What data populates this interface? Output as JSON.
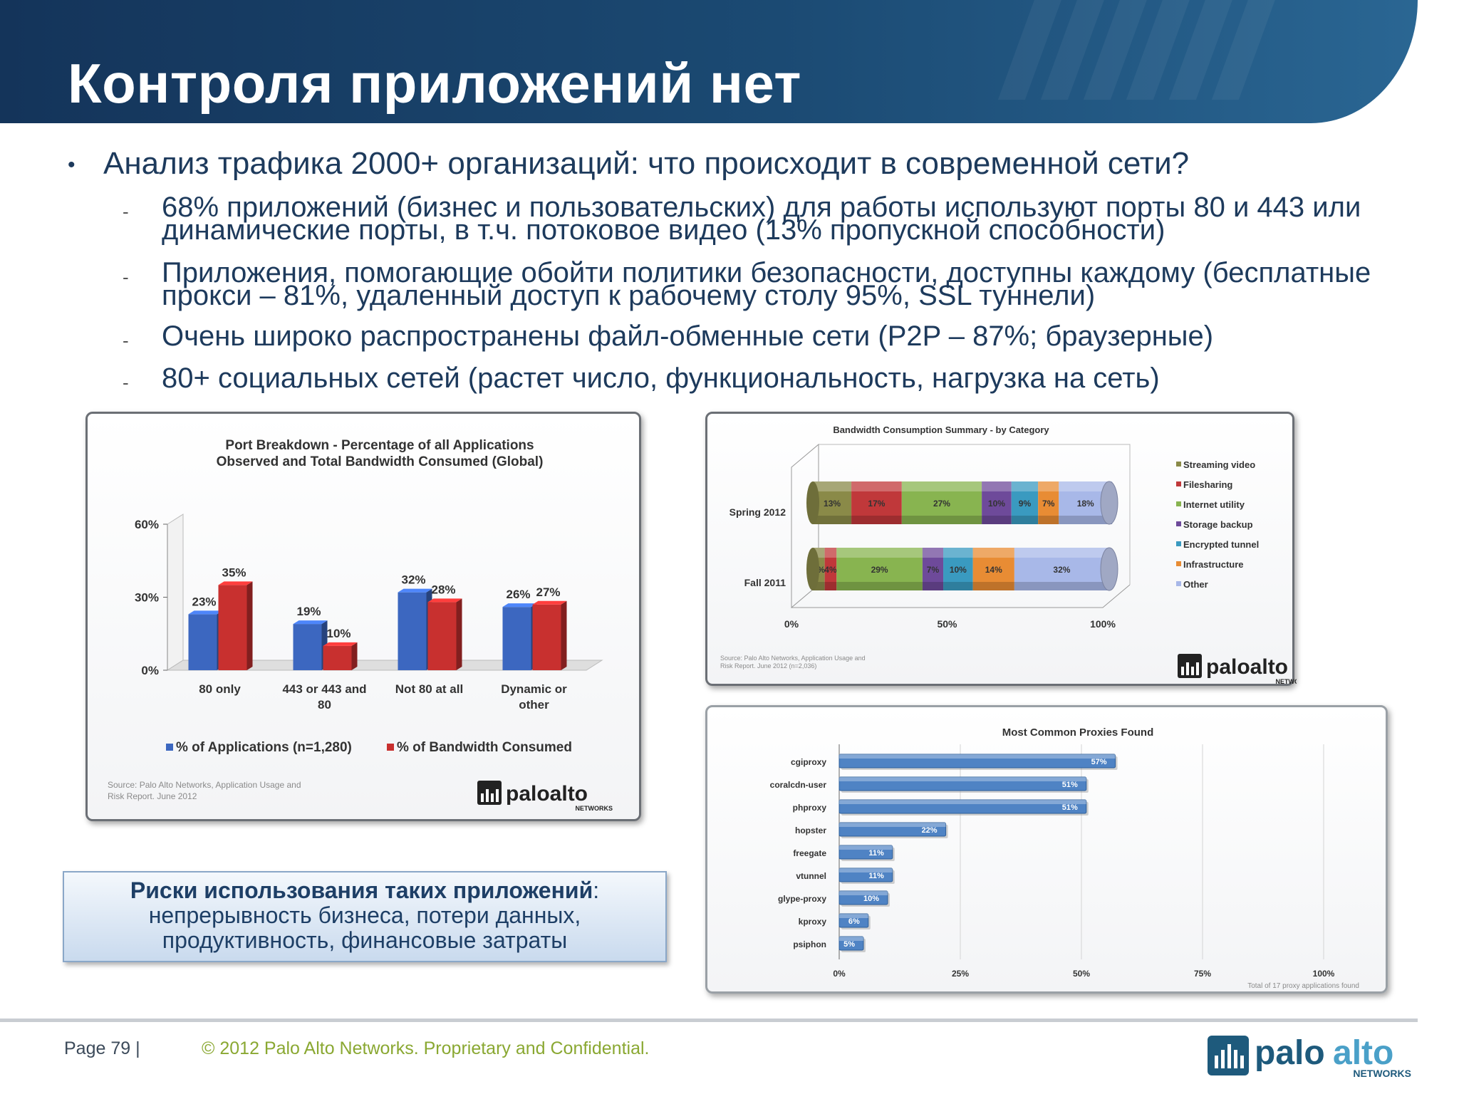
{
  "slide": {
    "title": "Контроля приложений нет",
    "bullet_main": "Анализ трафика 2000+ организаций: что происходит в современной сети?",
    "sub_bullets": [
      {
        "line1": "68% приложений (бизнес и пользовательских) для работы используют порты 80 и 443 или",
        "line2": "динамические порты, в т.ч. потоковое видео (13% пропускной способности)"
      },
      {
        "line1": "Приложения, помогающие обойти политики безопасности, доступны каждому (бесплатные",
        "line2": "прокси – 81%, удаленный доступ к рабочему столу 95%, SSL туннели)"
      },
      {
        "line1": "Очень широко распространены файл-обменные сети (P2P – 87%; браузерные)",
        "line2": ""
      },
      {
        "line1": "80+ социальных сетей (растет число, функциональность, нагрузка на сеть)",
        "line2": ""
      }
    ],
    "risk_box": {
      "bold": "Риски использования таких приложений",
      "colon": ":",
      "line2": "непрерывность бизнеса, потери данных,",
      "line3": "продуктивность, финансовые затраты"
    },
    "footer": {
      "page": "Page 79  |",
      "copyright": "© 2012 Palo Alto Networks. Proprietary and Confidential.",
      "logo_text_a": "palo",
      "logo_text_b": "alto",
      "logo_sub": "NETWORKS"
    }
  },
  "chart_data": [
    {
      "type": "bar",
      "title": "Port Breakdown - Percentage of all Applications",
      "subtitle": "Observed and Total Bandwidth Consumed (Global)",
      "categories": [
        "80 only",
        "443 or 443 and 80",
        "Not 80 at all",
        "Dynamic or other"
      ],
      "category_lines": [
        [
          "80 only"
        ],
        [
          "443 or 443 and",
          "80"
        ],
        [
          "Not 80 at all"
        ],
        [
          "Dynamic or",
          "other"
        ]
      ],
      "series": [
        {
          "name": "% of Applications (n=1,280)",
          "values": [
            23,
            19,
            32,
            26
          ],
          "color": "#3c67c0"
        },
        {
          "name": "% of Bandwidth Consumed",
          "values": [
            35,
            10,
            28,
            27
          ],
          "color": "#c8302f"
        }
      ],
      "yticks": [
        "60%",
        "30%",
        "0%"
      ],
      "ylim": [
        0,
        60
      ],
      "source_line1": "Source: Palo Alto Networks, Application Usage and",
      "source_line2": "Risk Report. June 2012",
      "logo": "paloalto",
      "logo_sub": "NETWORKS"
    },
    {
      "type": "bar",
      "stacked": true,
      "title": "Bandwidth Consumption Summary - by Category",
      "categories": [
        "Spring 2012",
        "Fall 2011"
      ],
      "series": [
        {
          "name": "Streaming video",
          "values": [
            13,
            4
          ],
          "color": "#8a8a48"
        },
        {
          "name": "Filesharing",
          "values": [
            17,
            4
          ],
          "color": "#c0383a"
        },
        {
          "name": "Internet utility",
          "values": [
            27,
            29
          ],
          "color": "#88b450"
        },
        {
          "name": "Storage backup",
          "values": [
            10,
            7
          ],
          "color": "#6e4a9a"
        },
        {
          "name": "Encrypted tunnel",
          "values": [
            9,
            10
          ],
          "color": "#3a9ac0"
        },
        {
          "name": "Infrastructure",
          "values": [
            7,
            14
          ],
          "color": "#e88c34"
        },
        {
          "name": "Other",
          "values": [
            18,
            32
          ],
          "color": "#a8b8e8"
        }
      ],
      "xticks": [
        "0%",
        "50%",
        "100%"
      ],
      "xlim": [
        0,
        100
      ],
      "legend": "right",
      "source_line1": "Source: Palo Alto Networks, Application Usage and",
      "source_line2": "Risk Report. June 2012 (n=2,036)",
      "logo": "paloalto",
      "logo_sub": "NETWORKS"
    },
    {
      "type": "bar",
      "orientation": "horizontal",
      "title": "Most Common Proxies Found",
      "categories": [
        "cgiproxy",
        "coralcdn-user",
        "phproxy",
        "hopster",
        "freegate",
        "vtunnel",
        "glype-proxy",
        "kproxy",
        "psiphon"
      ],
      "values": [
        57,
        51,
        51,
        22,
        11,
        11,
        10,
        6,
        5
      ],
      "color": "#4f83c4",
      "xticks": [
        "0%",
        "25%",
        "50%",
        "75%",
        "100%"
      ],
      "xlim": [
        0,
        100
      ],
      "note": "Total of 17 proxy applications found"
    }
  ]
}
